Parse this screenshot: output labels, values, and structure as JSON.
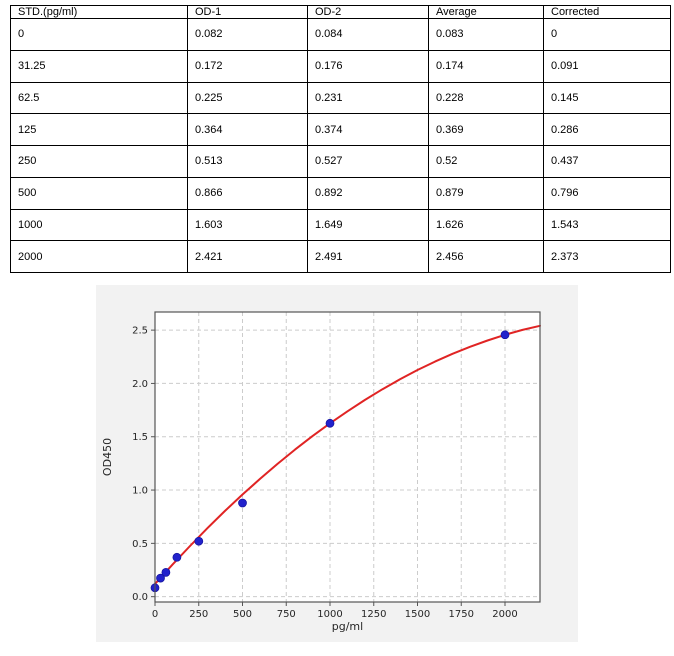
{
  "table": {
    "headers": [
      "STD.(pg/ml)",
      "OD-1",
      "OD-2",
      "Average",
      "Corrected"
    ],
    "rows": [
      [
        "0",
        "0.082",
        "0.084",
        "0.083",
        "0"
      ],
      [
        "31.25",
        "0.172",
        "0.176",
        "0.174",
        "0.091"
      ],
      [
        "62.5",
        "0.225",
        "0.231",
        "0.228",
        "0.145"
      ],
      [
        "125",
        "0.364",
        "0.374",
        "0.369",
        "0.286"
      ],
      [
        "250",
        "0.513",
        "0.527",
        "0.52",
        "0.437"
      ],
      [
        "500",
        "0.866",
        "0.892",
        "0.879",
        "0.796"
      ],
      [
        "1000",
        "1.603",
        "1.649",
        "1.626",
        "1.543"
      ],
      [
        "2000",
        "2.421",
        "2.491",
        "2.456",
        "2.373"
      ]
    ]
  },
  "chart_data": {
    "type": "scatter",
    "title": "",
    "xlabel": "pg/ml",
    "ylabel": "OD450",
    "xlim": [
      0,
      2200
    ],
    "ylim": [
      -0.05,
      2.67
    ],
    "x_ticks": [
      "0",
      "250",
      "500",
      "750",
      "1000",
      "1250",
      "1500",
      "1750",
      "2000"
    ],
    "y_ticks": [
      "0.0",
      "0.5",
      "1.0",
      "1.5",
      "2.0",
      "2.5"
    ],
    "grid": "dashed",
    "legend": "none",
    "points": {
      "name": "standards",
      "x": [
        0,
        31.25,
        62.5,
        125,
        250,
        500,
        1000,
        2000
      ],
      "y": [
        0.083,
        0.174,
        0.228,
        0.369,
        0.52,
        0.879,
        1.626,
        2.456
      ],
      "color": "#2222cc",
      "edge_color": "#15159e",
      "marker_radius": 4
    },
    "fit_curve": {
      "color": "#e02424",
      "width": 2,
      "x": [
        0,
        100,
        200,
        300,
        400,
        500,
        600,
        700,
        800,
        900,
        1000,
        1100,
        1200,
        1300,
        1400,
        1500,
        1600,
        1700,
        1800,
        1900,
        2000,
        2100,
        2200
      ],
      "y": [
        0.12,
        0.301,
        0.475,
        0.643,
        0.804,
        0.958,
        1.105,
        1.245,
        1.379,
        1.506,
        1.626,
        1.739,
        1.846,
        1.946,
        2.039,
        2.126,
        2.205,
        2.278,
        2.344,
        2.403,
        2.456,
        2.502,
        2.541
      ]
    },
    "colors": {
      "figure_bg": "#f2f2f2",
      "plot_bg": "#ffffff",
      "grid": "#cccccc",
      "spine": "#555555",
      "text": "#262626"
    }
  }
}
